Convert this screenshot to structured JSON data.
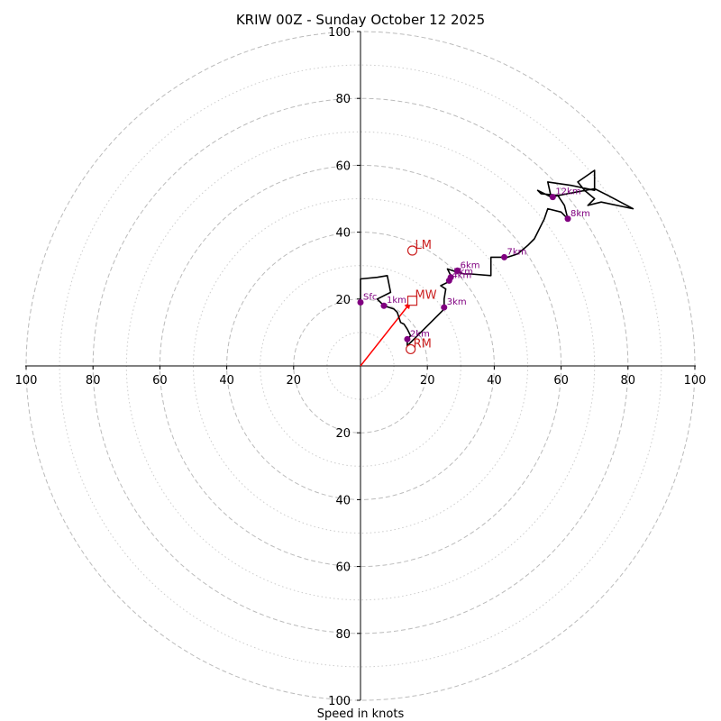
{
  "chart_data": {
    "type": "hodograph",
    "title": "KRIW 00Z - Sunday October 12 2025",
    "xlabel": "Speed in knots",
    "units": "knots",
    "range": [
      -100,
      100
    ],
    "major_rings": [
      20,
      40,
      60,
      80,
      100
    ],
    "minor_rings": [
      10,
      30,
      50,
      70,
      90
    ],
    "tick_values": [
      20,
      40,
      60,
      80,
      100
    ],
    "tick_labels": [
      "20",
      "40",
      "60",
      "80",
      "100"
    ],
    "colors": {
      "trace": "#000000",
      "height_marker": "#800080",
      "storm_motion": "#cc2222",
      "shear_vector": "#ff0000",
      "major_ring": "#bbbbbb",
      "minor_ring": "#cccccc"
    },
    "trace": [
      [
        0,
        19
      ],
      [
        0,
        26
      ],
      [
        5,
        26.5
      ],
      [
        8,
        27
      ],
      [
        9,
        22
      ],
      [
        5,
        20
      ],
      [
        7,
        18
      ],
      [
        10,
        17
      ],
      [
        11,
        16
      ],
      [
        12,
        13
      ],
      [
        13,
        12.5
      ],
      [
        14,
        11
      ],
      [
        15,
        9
      ],
      [
        14,
        8
      ],
      [
        14,
        6
      ],
      [
        15,
        7
      ],
      [
        17,
        9
      ],
      [
        19,
        11
      ],
      [
        21,
        13
      ],
      [
        23,
        15
      ],
      [
        25,
        17
      ],
      [
        25,
        20
      ],
      [
        25.5,
        23
      ],
      [
        24,
        24
      ],
      [
        26,
        25
      ],
      [
        27,
        27
      ],
      [
        26,
        29
      ],
      [
        29,
        28
      ],
      [
        31,
        27.5
      ],
      [
        33,
        27.5
      ],
      [
        39,
        27
      ],
      [
        39,
        32.5
      ],
      [
        42,
        32.5
      ],
      [
        44,
        32.5
      ],
      [
        47,
        33.5
      ],
      [
        50,
        36
      ],
      [
        52,
        38
      ],
      [
        53,
        40
      ],
      [
        55,
        44
      ],
      [
        56,
        47
      ],
      [
        60,
        46
      ],
      [
        62,
        44
      ],
      [
        61,
        48
      ],
      [
        59,
        51
      ],
      [
        54,
        51.5
      ],
      [
        53,
        52.5
      ],
      [
        57,
        50.5
      ],
      [
        62,
        51.5
      ],
      [
        70,
        53
      ],
      [
        74,
        51
      ],
      [
        81.5,
        47
      ],
      [
        72,
        49
      ],
      [
        68,
        48
      ],
      [
        70,
        50
      ],
      [
        67,
        52.5
      ],
      [
        65,
        55
      ],
      [
        70,
        58.5
      ],
      [
        70,
        52.5
      ],
      [
        63,
        54
      ],
      [
        56,
        55
      ],
      [
        57,
        50.5
      ]
    ],
    "height_markers": [
      {
        "label": "Sfc",
        "u": 0,
        "v": 19
      },
      {
        "label": "1km",
        "u": 7,
        "v": 18
      },
      {
        "label": "2km",
        "u": 14,
        "v": 8
      },
      {
        "label": "3km",
        "u": 25,
        "v": 17.5
      },
      {
        "label": "4km",
        "u": 26.5,
        "v": 25.5
      },
      {
        "label": "5km",
        "u": 27,
        "v": 26.5
      },
      {
        "label": "6km",
        "u": 29,
        "v": 28.5
      },
      {
        "label": "7km",
        "u": 43,
        "v": 32.5
      },
      {
        "label": "8km",
        "u": 62,
        "v": 44
      },
      {
        "label": "12km",
        "u": 57.5,
        "v": 50.5
      }
    ],
    "storm_motion": [
      {
        "label": "LM",
        "u": 15.5,
        "v": 34.5,
        "marker": "circle"
      },
      {
        "label": "MW",
        "u": 15.5,
        "v": 19.5,
        "marker": "square"
      },
      {
        "label": "RM",
        "u": 15,
        "v": 5,
        "marker": "circle"
      }
    ],
    "shear_vector": {
      "u": 15,
      "v": 19
    }
  }
}
